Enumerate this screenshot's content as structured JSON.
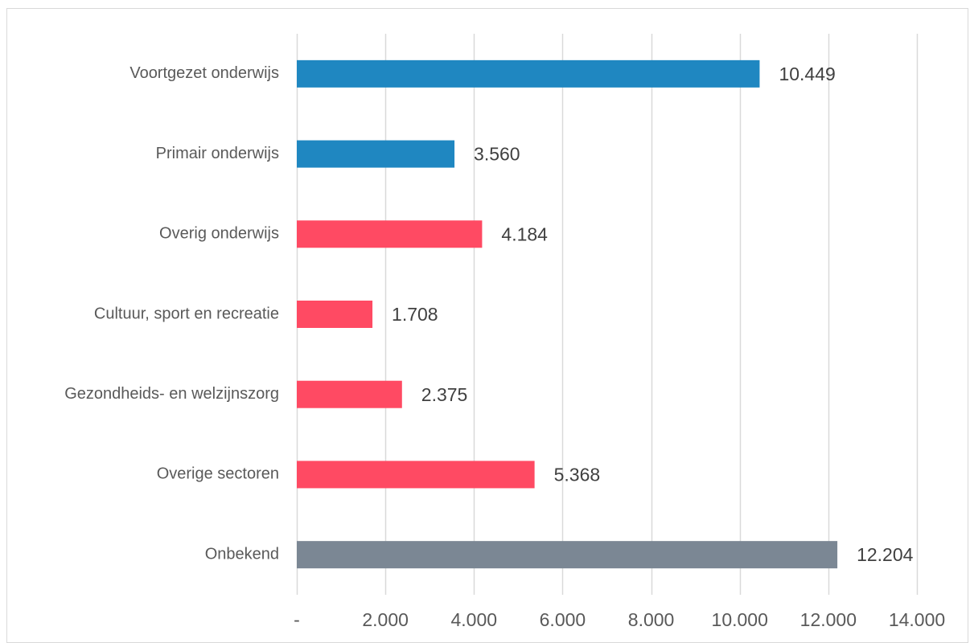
{
  "chart_data": {
    "type": "bar",
    "orientation": "horizontal",
    "categories": [
      "Voortgezet onderwijs",
      "Primair onderwijs",
      "Overig onderwijs",
      "Cultuur, sport en recreatie",
      "Gezondheids- en welzijnszorg",
      "Overige sectoren",
      "Onbekend"
    ],
    "values": [
      10449,
      3560,
      4184,
      1708,
      2375,
      5368,
      12204
    ],
    "data_labels": [
      "10.449",
      "3.560",
      "4.184",
      "1.708",
      "2.375",
      "5.368",
      "12.204"
    ],
    "bar_colors": [
      "#1f87c1",
      "#1f87c1",
      "#ff4a63",
      "#ff4a63",
      "#ff4a63",
      "#ff4a63",
      "#7b8794"
    ],
    "xlim": [
      0,
      14000
    ],
    "x_ticks": [
      0,
      2000,
      4000,
      6000,
      8000,
      10000,
      12000,
      14000
    ],
    "x_tick_labels": [
      "-",
      "2.000",
      "4.000",
      "6.000",
      "8.000",
      "10.000",
      "12.000",
      "14.000"
    ],
    "grid": "vertical",
    "gridline_color": "#d9d9d9",
    "title": "",
    "xlabel": "",
    "ylabel": ""
  }
}
